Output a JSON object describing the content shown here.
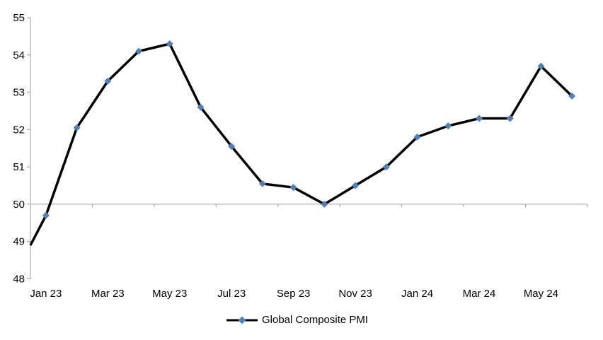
{
  "chart_data": {
    "type": "line",
    "title": "",
    "xlabel": "",
    "ylabel": "",
    "legend": {
      "label": "Global Composite PMI",
      "position": "bottom-center"
    },
    "categories": [
      "Jan 23",
      "Feb 23",
      "Mar 23",
      "Apr 23",
      "May 23",
      "Jun 23",
      "Jul 23",
      "Aug 23",
      "Sep 23",
      "Oct 23",
      "Nov 23",
      "Dec 23",
      "Jan 24",
      "Feb 24",
      "Mar 24",
      "Apr 24",
      "May 24",
      "Jun 24"
    ],
    "values": [
      49.7,
      52.05,
      53.3,
      54.1,
      54.3,
      52.6,
      51.55,
      50.55,
      50.45,
      50.0,
      50.5,
      51.0,
      51.8,
      52.1,
      52.3,
      52.3,
      53.7,
      52.9
    ],
    "edge_start_value": 48.9,
    "x_tick_labels": [
      "Jan 23",
      "Mar 23",
      "May 23",
      "Jul 23",
      "Sep 23",
      "Nov 23",
      "Jan 24",
      "Mar 24",
      "May 24"
    ],
    "x_tick_label_interval_months": 2,
    "y_ticks": [
      55,
      54,
      53,
      52,
      51,
      50,
      49,
      48
    ],
    "ylim": [
      48,
      55
    ],
    "x_axis_cross_value": 50,
    "gridlines": "none",
    "marker_shape": "diamond",
    "colors": {
      "line": "#000000",
      "marker": "#4F81BD",
      "axis": "#9C9C9C",
      "text": "#000000",
      "background": "#FFFFFF"
    }
  }
}
